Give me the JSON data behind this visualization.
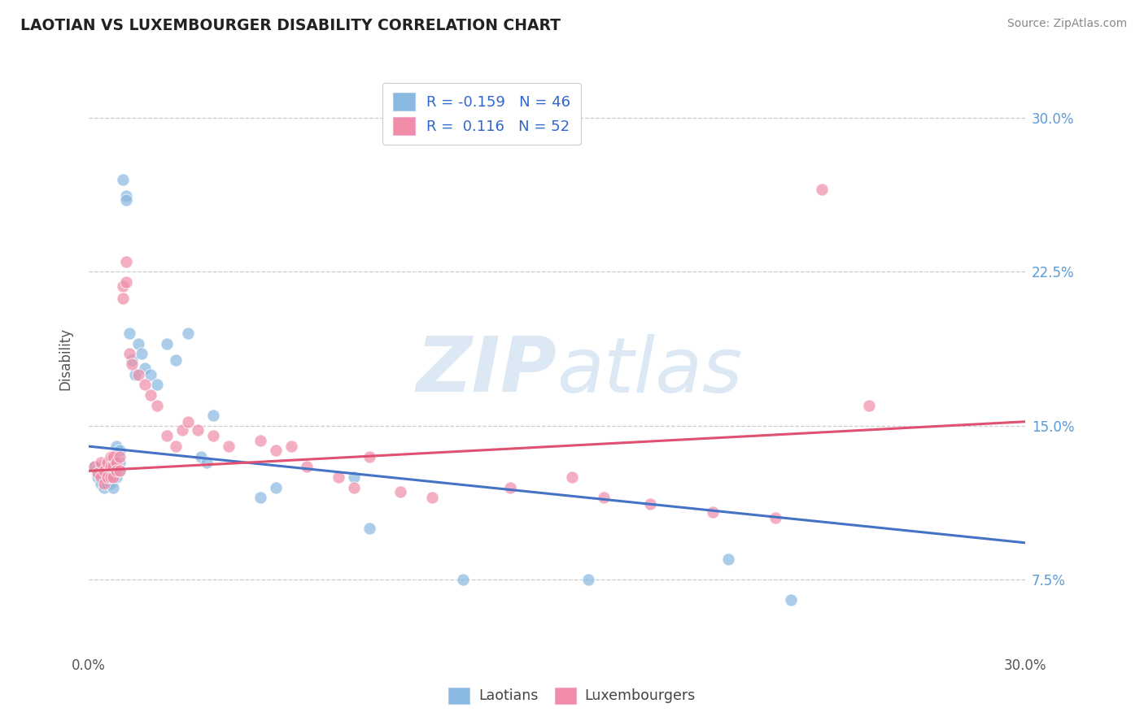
{
  "title": "LAOTIAN VS LUXEMBOURGER DISABILITY CORRELATION CHART",
  "source": "Source: ZipAtlas.com",
  "ylabel": "Disability",
  "ytick_values": [
    0.075,
    0.15,
    0.225,
    0.3
  ],
  "ytick_labels": [
    "7.5%",
    "15.0%",
    "22.5%",
    "30.0%"
  ],
  "xlim": [
    0.0,
    0.3
  ],
  "ylim": [
    0.04,
    0.325
  ],
  "laotian_color": "#89b8e0",
  "luxembourger_color": "#f08ca8",
  "trend_laotian_color": "#4472c4",
  "trend_luxembourger_color": "#e05070",
  "laotian_x": [
    0.002,
    0.003,
    0.004,
    0.004,
    0.005,
    0.005,
    0.006,
    0.006,
    0.006,
    0.007,
    0.007,
    0.007,
    0.008,
    0.008,
    0.008,
    0.008,
    0.009,
    0.009,
    0.01,
    0.01,
    0.01,
    0.011,
    0.012,
    0.012,
    0.013,
    0.014,
    0.015,
    0.016,
    0.017,
    0.018,
    0.02,
    0.022,
    0.025,
    0.028,
    0.032,
    0.036,
    0.038,
    0.04,
    0.055,
    0.06,
    0.085,
    0.09,
    0.12,
    0.16,
    0.205,
    0.225
  ],
  "laotian_y": [
    0.13,
    0.125,
    0.13,
    0.122,
    0.125,
    0.12,
    0.13,
    0.128,
    0.122,
    0.132,
    0.128,
    0.122,
    0.13,
    0.128,
    0.125,
    0.12,
    0.14,
    0.125,
    0.138,
    0.132,
    0.128,
    0.27,
    0.262,
    0.26,
    0.195,
    0.182,
    0.175,
    0.19,
    0.185,
    0.178,
    0.175,
    0.17,
    0.19,
    0.182,
    0.195,
    0.135,
    0.132,
    0.155,
    0.115,
    0.12,
    0.125,
    0.1,
    0.075,
    0.075,
    0.085,
    0.065
  ],
  "luxembourger_x": [
    0.002,
    0.003,
    0.004,
    0.004,
    0.005,
    0.005,
    0.006,
    0.006,
    0.007,
    0.007,
    0.007,
    0.008,
    0.008,
    0.008,
    0.009,
    0.009,
    0.01,
    0.01,
    0.011,
    0.011,
    0.012,
    0.012,
    0.013,
    0.014,
    0.016,
    0.018,
    0.02,
    0.022,
    0.025,
    0.028,
    0.03,
    0.032,
    0.035,
    0.04,
    0.045,
    0.055,
    0.06,
    0.065,
    0.07,
    0.08,
    0.085,
    0.09,
    0.1,
    0.11,
    0.135,
    0.155,
    0.165,
    0.18,
    0.2,
    0.22,
    0.235,
    0.25
  ],
  "luxembourger_y": [
    0.13,
    0.127,
    0.132,
    0.125,
    0.128,
    0.122,
    0.132,
    0.125,
    0.135,
    0.13,
    0.125,
    0.135,
    0.13,
    0.125,
    0.132,
    0.128,
    0.135,
    0.128,
    0.218,
    0.212,
    0.23,
    0.22,
    0.185,
    0.18,
    0.175,
    0.17,
    0.165,
    0.16,
    0.145,
    0.14,
    0.148,
    0.152,
    0.148,
    0.145,
    0.14,
    0.143,
    0.138,
    0.14,
    0.13,
    0.125,
    0.12,
    0.135,
    0.118,
    0.115,
    0.12,
    0.125,
    0.115,
    0.112,
    0.108,
    0.105,
    0.265,
    0.16
  ],
  "trend_lao_x0": 0.0,
  "trend_lao_y0": 0.14,
  "trend_lao_x1": 0.3,
  "trend_lao_y1": 0.093,
  "trend_lux_x0": 0.0,
  "trend_lux_y0": 0.128,
  "trend_lux_x1": 0.3,
  "trend_lux_y1": 0.152,
  "bottom_legend": [
    "Laotians",
    "Luxembourgers"
  ]
}
